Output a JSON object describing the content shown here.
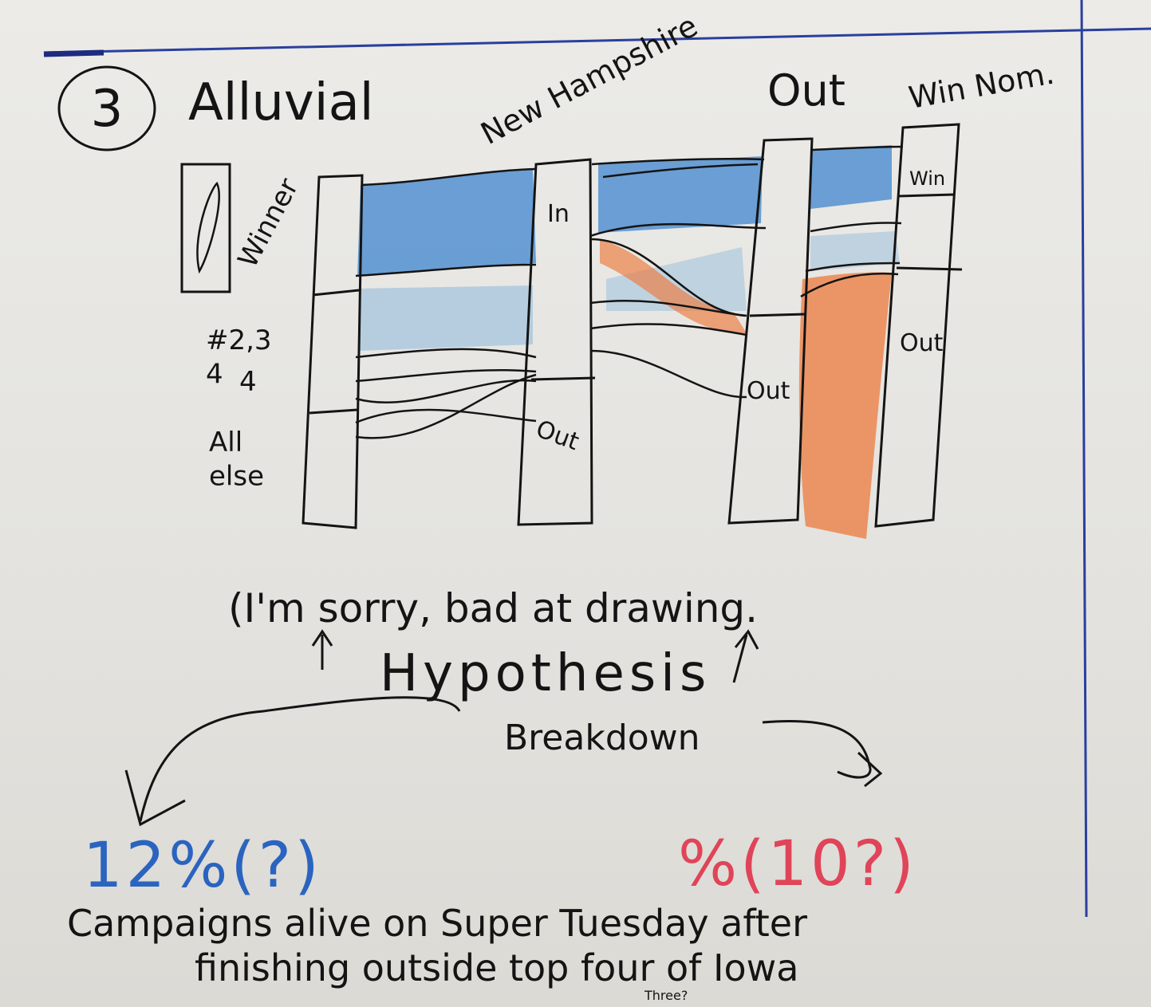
{
  "sketch": {
    "number": "3",
    "title": "Alluvial",
    "columns": {
      "new_hampshire": "New Hampshire",
      "out": "Out",
      "win_nom": "Win Nom."
    },
    "row_labels": {
      "winner": "Winner",
      "places": "#2,3\n4",
      "all_else": "All\nelse"
    },
    "cells": {
      "nh_in": "In",
      "nh_out": "Out",
      "out_out": "Out",
      "win": "Win",
      "win_out": "Out"
    },
    "apology": "(I'm sorry, bad at drawing.",
    "hypothesis": "Hypothesis",
    "breakdown": "Breakdown",
    "left_value": "12%(?)",
    "right_value": "%(10?)",
    "caption": {
      "line1": "Campaigns alive on Super Tuesday after",
      "line2": "finishing outside top four of Iowa",
      "small": "Three?"
    },
    "colors": {
      "ink": "#141414",
      "blue_ink": "#2a64c0",
      "blue_fill": "#3f86cf",
      "light_blue": "#8db8dc",
      "orange": "#ec7a3c",
      "red_ink": "#e04458",
      "margin_line": "#2a3f9e"
    }
  }
}
